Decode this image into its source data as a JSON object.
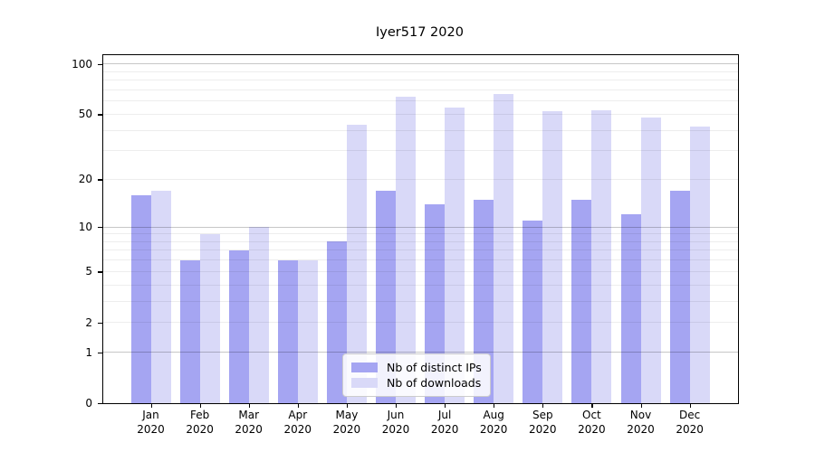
{
  "title": "Iyer517 2020",
  "legend": {
    "items": [
      {
        "label": "Nb of distinct IPs",
        "color": "#a5a5f2"
      },
      {
        "label": "Nb of downloads",
        "color": "#d9d9f8"
      }
    ]
  },
  "chart_data": {
    "type": "bar",
    "title": "Iyer517 2020",
    "categories": [
      "Jan",
      "Feb",
      "Mar",
      "Apr",
      "May",
      "Jun",
      "Jul",
      "Aug",
      "Sep",
      "Oct",
      "Nov",
      "Dec"
    ],
    "x_year_label": "2020",
    "series": [
      {
        "name": "Nb of distinct IPs",
        "color": "#a5a5f2",
        "values": [
          16,
          6,
          7,
          6,
          8,
          17,
          14,
          15,
          11,
          15,
          12,
          17
        ]
      },
      {
        "name": "Nb of downloads",
        "color": "#d9d9f8",
        "values": [
          17,
          9,
          10,
          6,
          43,
          64,
          55,
          66,
          52,
          53,
          48,
          42
        ]
      }
    ],
    "yscale": "log1p",
    "ylim": [
      0,
      113
    ],
    "yticks": [
      0,
      1,
      2,
      5,
      10,
      20,
      50,
      100
    ],
    "major_gridlines": [
      1,
      10,
      100
    ],
    "minor_gridlines": [
      2,
      3,
      4,
      5,
      6,
      7,
      8,
      9,
      20,
      30,
      40,
      50,
      60,
      70,
      80,
      90
    ],
    "grid": true,
    "grid_major_color": "rgba(0,0,0,0.22)",
    "grid_minor_color": "rgba(0,0,0,0.07)",
    "axis_color": "#000000",
    "legend_position": "lower center"
  }
}
